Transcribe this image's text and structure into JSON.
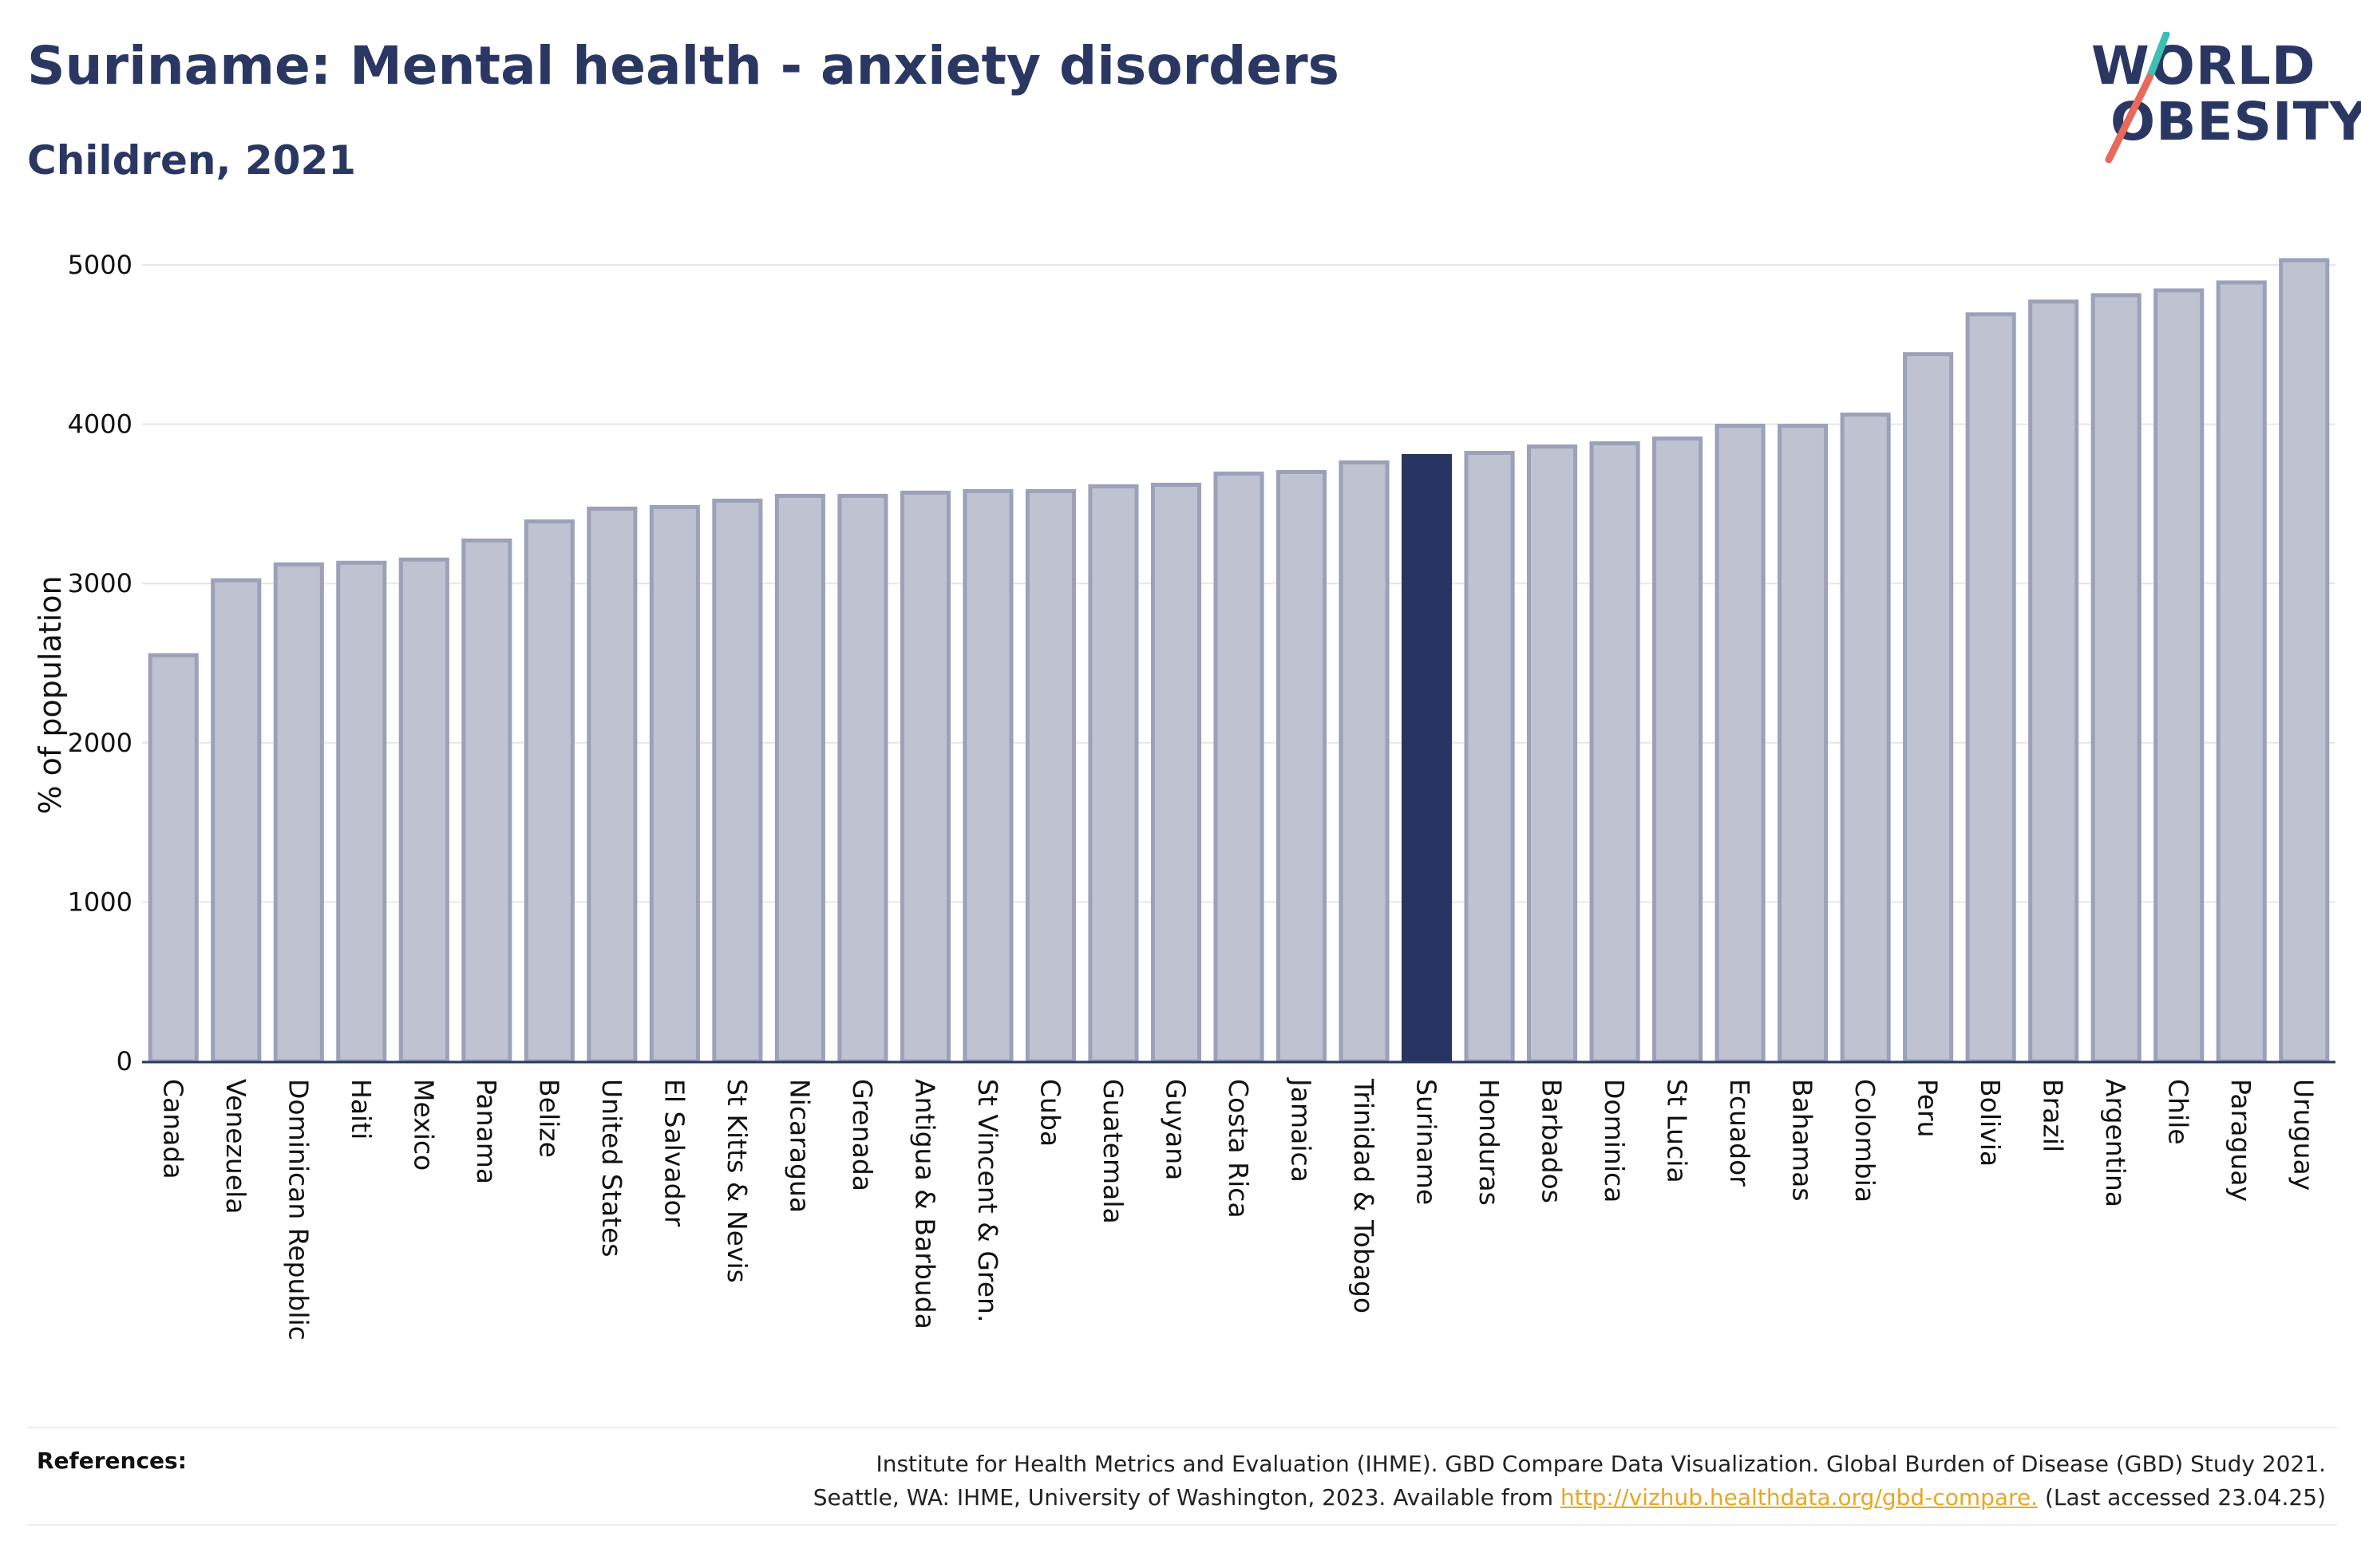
{
  "header": {
    "title": "Suriname: Mental health - anxiety disorders",
    "subtitle": "Children, 2021"
  },
  "logo": {
    "line1": "WORLD",
    "line2": "OBESITY"
  },
  "colors": {
    "bar": "#bfc2d0",
    "bar_stroke": "#9ba1b8",
    "highlight": "#283562",
    "text": "#2b3763",
    "grid": "#e6e6e6",
    "link": "#e8a722"
  },
  "chart_data": {
    "type": "bar",
    "ylabel": "% of population",
    "ylim": [
      0,
      5000
    ],
    "yticks": [
      0,
      1000,
      2000,
      3000,
      4000,
      5000
    ],
    "highlight": "Suriname",
    "categories": [
      "Canada",
      "Venezuela",
      "Dominican Republic",
      "Haiti",
      "Mexico",
      "Panama",
      "Belize",
      "United States",
      "El Salvador",
      "St Kitts & Nevis",
      "Nicaragua",
      "Grenada",
      "Antigua & Barbuda",
      "St Vincent & Gren.",
      "Cuba",
      "Guatemala",
      "Guyana",
      "Costa Rica",
      "Jamaica",
      "Trinidad & Tobago",
      "Suriname",
      "Honduras",
      "Barbados",
      "Dominica",
      "St Lucia",
      "Ecuador",
      "Bahamas",
      "Colombia",
      "Peru",
      "Bolivia",
      "Brazil",
      "Argentina",
      "Chile",
      "Paraguay",
      "Uruguay"
    ],
    "values": [
      2550,
      3020,
      3120,
      3130,
      3150,
      3270,
      3390,
      3470,
      3480,
      3520,
      3550,
      3550,
      3570,
      3580,
      3580,
      3610,
      3620,
      3690,
      3700,
      3760,
      3800,
      3820,
      3860,
      3880,
      3910,
      3990,
      3990,
      4060,
      4440,
      4690,
      4770,
      4810,
      4840,
      4890,
      5030
    ]
  },
  "references": {
    "label": "References:",
    "line1": "Institute for Health Metrics and Evaluation (IHME). GBD Compare Data Visualization. Global Burden of Disease (GBD) Study 2021.",
    "line2_prefix": "Seattle, WA: IHME, University of Washington, 2023. Available from ",
    "link": "http://vizhub.healthdata.org/gbd-compare.",
    "line2_suffix": " (Last accessed 23.04.25)"
  }
}
